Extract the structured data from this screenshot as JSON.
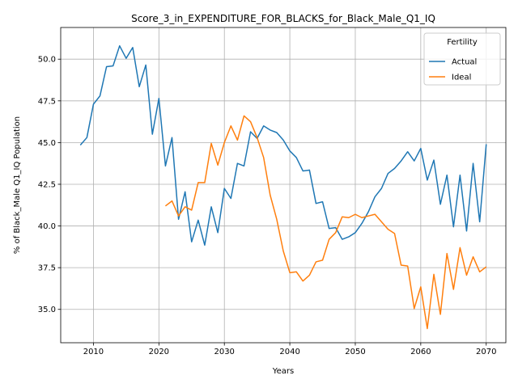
{
  "chart_data": {
    "type": "line",
    "title": "Score_3_in_EXPENDITURE_FOR_BLACKS_for_Black_Male_Q1_IQ",
    "xlabel": "Years",
    "ylabel": "% of Black_Male Q1_IQ Population",
    "xlim": [
      2005,
      2073
    ],
    "ylim": [
      33.0,
      51.9
    ],
    "xticks": [
      2010,
      2020,
      2030,
      2040,
      2050,
      2060,
      2070
    ],
    "xtick_labels": [
      "2010",
      "2020",
      "2030",
      "2040",
      "2050",
      "2060",
      "2070"
    ],
    "yticks": [
      35.0,
      37.5,
      40.0,
      42.5,
      45.0,
      47.5,
      50.0
    ],
    "ytick_labels": [
      "35.0",
      "37.5",
      "40.0",
      "42.5",
      "45.0",
      "47.5",
      "50.0"
    ],
    "grid": true,
    "legend": {
      "title": "Fertility",
      "placement": "top-right"
    },
    "series": [
      {
        "name": "Actual",
        "color": "#1f77b4",
        "x": [
          2008,
          2009,
          2010,
          2011,
          2012,
          2013,
          2014,
          2015,
          2016,
          2017,
          2018,
          2019,
          2020,
          2021,
          2022,
          2023,
          2024,
          2025,
          2026,
          2027,
          2028,
          2029,
          2030,
          2031,
          2032,
          2033,
          2034,
          2035,
          2036,
          2037,
          2038,
          2039,
          2040,
          2041,
          2042,
          2043,
          2044,
          2045,
          2046,
          2047,
          2048,
          2049,
          2050,
          2051,
          2052,
          2053,
          2054,
          2055,
          2056,
          2057,
          2058,
          2059,
          2060,
          2061,
          2062,
          2063,
          2064,
          2065,
          2066,
          2067,
          2068,
          2069,
          2070
        ],
        "values": [
          44.85,
          45.3,
          47.3,
          47.8,
          49.55,
          49.6,
          50.8,
          50.05,
          50.7,
          48.35,
          49.65,
          45.5,
          47.65,
          43.6,
          45.3,
          40.4,
          42.05,
          39.05,
          40.35,
          38.85,
          41.15,
          39.6,
          42.25,
          41.65,
          43.75,
          43.6,
          45.65,
          45.25,
          46.0,
          45.75,
          45.6,
          45.15,
          44.5,
          44.1,
          43.3,
          43.35,
          41.35,
          41.45,
          39.85,
          39.9,
          39.2,
          39.35,
          39.6,
          40.15,
          40.85,
          41.75,
          42.25,
          43.15,
          43.45,
          43.9,
          44.45,
          43.9,
          44.65,
          42.75,
          43.95,
          41.3,
          43.05,
          39.95,
          43.05,
          39.7,
          43.75,
          40.25,
          44.9
        ]
      },
      {
        "name": "Ideal",
        "color": "#ff7f0e",
        "x": [
          2021,
          2022,
          2023,
          2024,
          2025,
          2026,
          2027,
          2028,
          2029,
          2030,
          2031,
          2032,
          2033,
          2034,
          2035,
          2036,
          2037,
          2038,
          2039,
          2040,
          2041,
          2042,
          2043,
          2044,
          2045,
          2046,
          2047,
          2048,
          2049,
          2050,
          2051,
          2052,
          2053,
          2054,
          2055,
          2056,
          2057,
          2058,
          2059,
          2060,
          2061,
          2062,
          2063,
          2064,
          2065,
          2066,
          2067,
          2068,
          2069,
          2070
        ],
        "values": [
          41.2,
          41.5,
          40.6,
          41.15,
          40.95,
          42.6,
          42.6,
          44.95,
          43.65,
          45.0,
          46.0,
          45.15,
          46.6,
          46.25,
          45.3,
          44.1,
          41.85,
          40.4,
          38.5,
          37.2,
          37.25,
          36.7,
          37.05,
          37.85,
          37.95,
          39.2,
          39.6,
          40.55,
          40.5,
          40.7,
          40.5,
          40.6,
          40.7,
          40.25,
          39.8,
          39.55,
          37.65,
          37.6,
          35.05,
          36.35,
          33.85,
          37.1,
          34.7,
          38.35,
          36.2,
          38.7,
          37.05,
          38.15,
          37.25,
          37.55
        ]
      }
    ]
  }
}
